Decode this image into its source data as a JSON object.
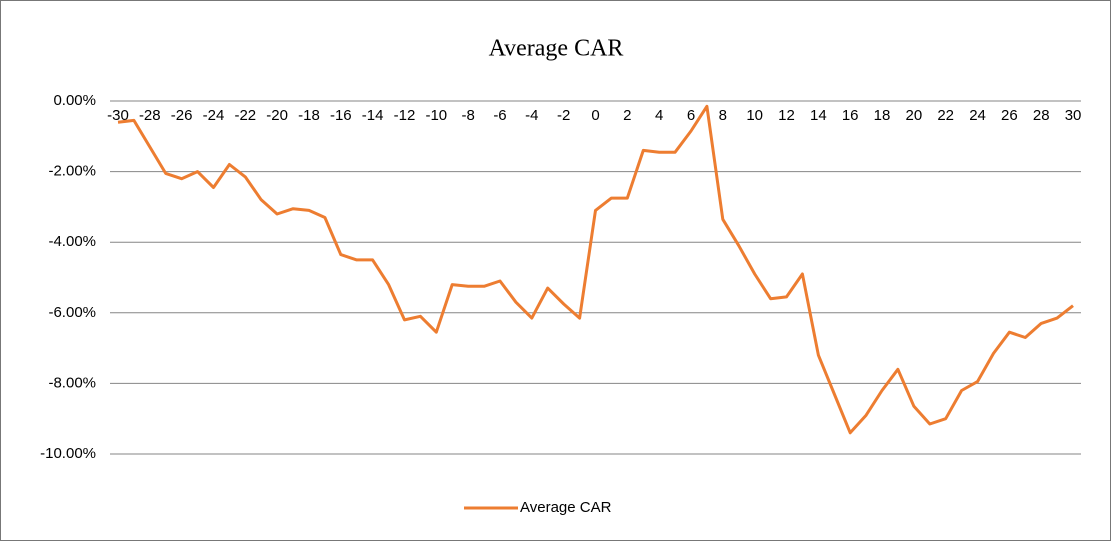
{
  "chart_data": {
    "type": "line",
    "title": "Average CAR",
    "categories": [
      -30,
      null,
      -28,
      null,
      -26,
      null,
      -24,
      null,
      -22,
      null,
      -20,
      null,
      -18,
      null,
      -16,
      null,
      -14,
      null,
      -12,
      null,
      -10,
      null,
      -8,
      null,
      -6,
      null,
      -4,
      null,
      -2,
      null,
      0,
      null,
      2,
      null,
      4,
      null,
      6,
      null,
      8,
      null,
      10,
      null,
      12,
      null,
      14,
      null,
      16,
      null,
      18,
      null,
      20,
      null,
      22,
      null,
      24,
      null,
      26,
      null,
      28,
      null,
      30
    ],
    "series": [
      {
        "name": "Average CAR",
        "color": "#ed7d31",
        "values": [
          -0.6,
          -0.55,
          -1.3,
          -2.05,
          -2.2,
          -2.0,
          -2.45,
          -1.8,
          -2.15,
          -2.8,
          -3.2,
          -3.05,
          -3.1,
          -3.3,
          -4.35,
          -4.5,
          -4.5,
          -5.2,
          -6.2,
          -6.1,
          -6.55,
          -5.2,
          -5.25,
          -5.25,
          -5.1,
          -5.7,
          -6.15,
          -5.3,
          -5.75,
          -6.15,
          -3.1,
          -2.75,
          -2.75,
          -1.4,
          -1.45,
          -1.45,
          -0.85,
          -0.15,
          -3.35,
          -4.1,
          -4.9,
          -5.6,
          -5.55,
          -4.9,
          -7.2,
          -8.3,
          -9.4,
          -8.9,
          -8.2,
          -7.6,
          -8.65,
          -9.15,
          -9.0,
          -8.2,
          -7.95,
          -7.15,
          -6.55,
          -6.7,
          -6.3,
          -6.15,
          -5.8
        ]
      }
    ],
    "ylim": [
      -10,
      0
    ],
    "yticks": [
      {
        "value": -10,
        "label": "-10.00%"
      },
      {
        "value": -8,
        "label": "-8.00%"
      },
      {
        "value": -6,
        "label": "-6.00%"
      },
      {
        "value": -4,
        "label": "-4.00%"
      },
      {
        "value": -2,
        "label": "-2.00%"
      },
      {
        "value": 0,
        "label": "0.00%"
      }
    ],
    "grid": true,
    "legend": "bottom"
  }
}
